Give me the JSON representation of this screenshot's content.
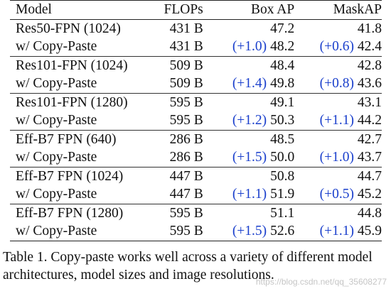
{
  "table": {
    "headers": {
      "model": "Model",
      "flops": "FLOPs",
      "box_ap": "Box AP",
      "mask_ap": "MaskAP"
    },
    "groups": [
      {
        "base": {
          "model": "Res50-FPN (1024)",
          "flops": "431 B",
          "box_ap": "47.2",
          "mask_ap": "41.8"
        },
        "copy_paste": {
          "model": "w/ Copy-Paste",
          "flops": "431 B",
          "box_delta": "(+1.0)",
          "box_ap": "48.2",
          "mask_delta": "(+0.6)",
          "mask_ap": "42.4"
        }
      },
      {
        "base": {
          "model": "Res101-FPN (1024)",
          "flops": "509 B",
          "box_ap": "48.4",
          "mask_ap": "42.8"
        },
        "copy_paste": {
          "model": "w/ Copy-Paste",
          "flops": "509 B",
          "box_delta": "(+1.4)",
          "box_ap": "49.8",
          "mask_delta": "(+0.8)",
          "mask_ap": "43.6"
        }
      },
      {
        "base": {
          "model": "Res101-FPN (1280)",
          "flops": "595 B",
          "box_ap": "49.1",
          "mask_ap": "43.1"
        },
        "copy_paste": {
          "model": "w/ Copy-Paste",
          "flops": "595 B",
          "box_delta": "(+1.2)",
          "box_ap": "50.3",
          "mask_delta": "(+1.1)",
          "mask_ap": "44.2"
        }
      },
      {
        "base": {
          "model": "Eff-B7 FPN (640)",
          "flops": "286 B",
          "box_ap": "48.5",
          "mask_ap": "42.7"
        },
        "copy_paste": {
          "model": "w/ Copy-Paste",
          "flops": "286 B",
          "box_delta": "(+1.5)",
          "box_ap": "50.0",
          "mask_delta": "(+1.0)",
          "mask_ap": "43.7"
        }
      },
      {
        "base": {
          "model": "Eff-B7 FPN (1024)",
          "flops": "447 B",
          "box_ap": "50.8",
          "mask_ap": "44.7"
        },
        "copy_paste": {
          "model": "w/ Copy-Paste",
          "flops": "447 B",
          "box_delta": "(+1.1)",
          "box_ap": "51.9",
          "mask_delta": "(+0.5)",
          "mask_ap": "45.2"
        }
      },
      {
        "base": {
          "model": "Eff-B7 FPN (1280)",
          "flops": "595 B",
          "box_ap": "51.1",
          "mask_ap": "44.8"
        },
        "copy_paste": {
          "model": "w/ Copy-Paste",
          "flops": "595 B",
          "box_delta": "(+1.5)",
          "box_ap": "52.6",
          "mask_delta": "(+1.1)",
          "mask_ap": "45.9"
        }
      }
    ],
    "delta_color": "#1a3fcc"
  },
  "caption": "Table 1. Copy-paste works well across a variety of different model architectures, model sizes and image resolutions.",
  "watermark": "https://blog.csdn.net/qq_35608277"
}
